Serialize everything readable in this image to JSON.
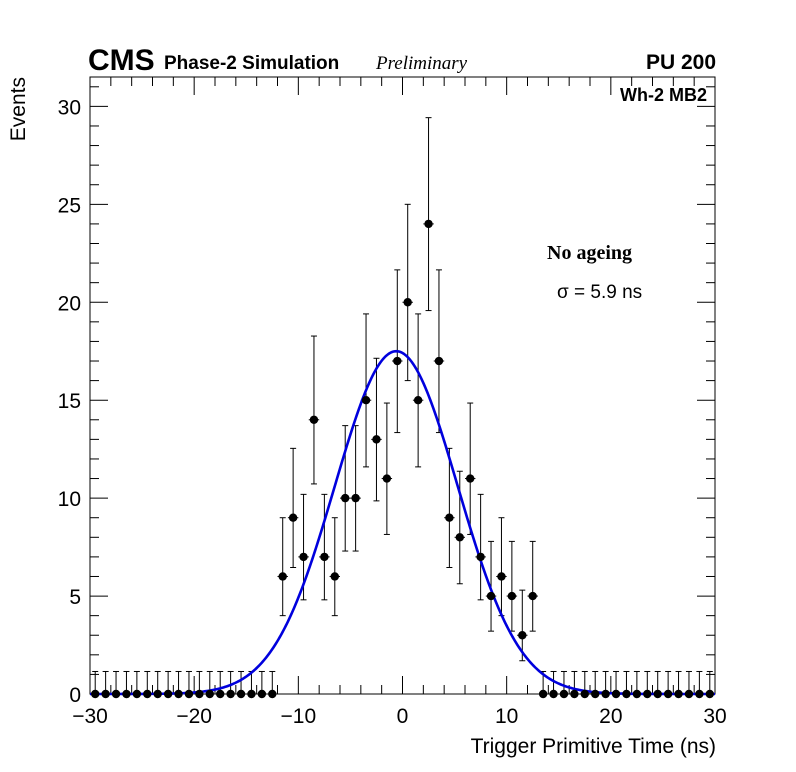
{
  "chart_data": {
    "type": "scatter",
    "experiment": "CMS",
    "subtitle": "Phase-2 Simulation",
    "status": "Preliminary",
    "pileup": "PU 200",
    "chamber": "Wh-2 MB2",
    "legend_title": "No ageing",
    "sigma_text": "σ = 5.9 ns",
    "xlabel": "Trigger Primitive Time (ns)",
    "ylabel": "Events",
    "xlim": [
      -30,
      30
    ],
    "ylim": [
      0,
      31.5
    ],
    "x_major_ticks": [
      -30,
      -20,
      -10,
      0,
      10,
      20,
      30
    ],
    "x_tick_labels": [
      "−30",
      "−20",
      "−10",
      "0",
      "10",
      "20",
      "30"
    ],
    "y_major_ticks": [
      0,
      5,
      10,
      15,
      20,
      25,
      30
    ],
    "y_tick_labels": [
      "0",
      "5",
      "10",
      "15",
      "20",
      "25",
      "30"
    ],
    "bin_width": 1,
    "series": [
      {
        "name": "Data",
        "x": [
          -29.5,
          -28.5,
          -27.5,
          -26.5,
          -25.5,
          -24.5,
          -23.5,
          -22.5,
          -21.5,
          -20.5,
          -19.5,
          -18.5,
          -17.5,
          -16.5,
          -15.5,
          -14.5,
          -13.5,
          -12.5,
          -11.5,
          -10.5,
          -9.5,
          -8.5,
          -7.5,
          -6.5,
          -5.5,
          -4.5,
          -3.5,
          -2.5,
          -1.5,
          -0.5,
          0.5,
          1.5,
          2.5,
          3.5,
          4.5,
          5.5,
          6.5,
          7.5,
          8.5,
          9.5,
          10.5,
          11.5,
          12.5,
          13.5,
          14.5,
          15.5,
          16.5,
          17.5,
          18.5,
          19.5,
          20.5,
          21.5,
          22.5,
          23.5,
          24.5,
          25.5,
          26.5,
          27.5,
          28.5,
          29.5
        ],
        "values": [
          0,
          0,
          0,
          0,
          0,
          0,
          0,
          0,
          0,
          0,
          0,
          0,
          0,
          0,
          0,
          0,
          0,
          0,
          6,
          9,
          7,
          14,
          7,
          6,
          10,
          10,
          15,
          13,
          11,
          17,
          20,
          15,
          24,
          17,
          9,
          8,
          11,
          7,
          5,
          6,
          5,
          3,
          5,
          0,
          0,
          0,
          0,
          0,
          0,
          0,
          0,
          0,
          0,
          0,
          0,
          0,
          0,
          0,
          0,
          0
        ]
      },
      {
        "name": "Gaussian fit",
        "amplitude": 17.5,
        "mean": -0.6,
        "sigma": 5.9,
        "color": "#0000dd"
      }
    ]
  }
}
